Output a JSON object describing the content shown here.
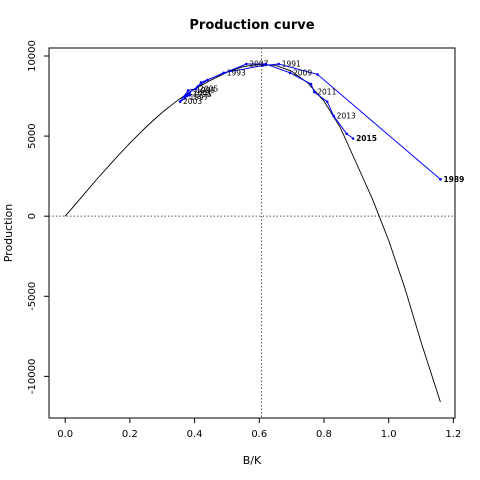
{
  "chart_data": {
    "type": "line",
    "title": "Production curve",
    "xlabel": "B/K",
    "ylabel": "Production",
    "xlim": [
      -0.05,
      1.205
    ],
    "ylim": [
      -12600,
      10500
    ],
    "x_ticks": [
      {
        "value": 0.0,
        "label": "0.0"
      },
      {
        "value": 0.2,
        "label": "0.2"
      },
      {
        "value": 0.4,
        "label": "0.4"
      },
      {
        "value": 0.6,
        "label": "0.6"
      },
      {
        "value": 0.8,
        "label": "0.8"
      },
      {
        "value": 1.0,
        "label": "1.0"
      },
      {
        "value": 1.2,
        "label": "1.2"
      }
    ],
    "y_ticks": [
      {
        "value": -10000,
        "label": "-10000"
      },
      {
        "value": -5000,
        "label": "-5000"
      },
      {
        "value": 0,
        "label": "0"
      },
      {
        "value": 5000,
        "label": "5000"
      },
      {
        "value": 10000,
        "label": "10000"
      }
    ],
    "reference_lines": {
      "vertical_x": 0.607,
      "horizontal_y": 0
    },
    "model_curve": {
      "color": "#000000",
      "points": [
        [
          0.0,
          0
        ],
        [
          0.05,
          1180
        ],
        [
          0.1,
          2350
        ],
        [
          0.15,
          3480
        ],
        [
          0.2,
          4560
        ],
        [
          0.25,
          5570
        ],
        [
          0.3,
          6480
        ],
        [
          0.35,
          7270
        ],
        [
          0.4,
          7940
        ],
        [
          0.45,
          8490
        ],
        [
          0.5,
          8980
        ],
        [
          0.55,
          9330
        ],
        [
          0.6,
          9480
        ],
        [
          0.65,
          9420
        ],
        [
          0.7,
          9050
        ],
        [
          0.75,
          8320
        ],
        [
          0.8,
          7180
        ],
        [
          0.85,
          5540
        ],
        [
          0.9,
          3320
        ],
        [
          0.95,
          1060
        ],
        [
          1.0,
          -1520
        ],
        [
          1.05,
          -4500
        ],
        [
          1.1,
          -7850
        ],
        [
          1.16,
          -11600
        ]
      ]
    },
    "series": [
      {
        "color": "#0000ff",
        "points": [
          {
            "year": "1989",
            "x": 1.16,
            "y": 2300,
            "bold": true
          },
          {
            "year": "",
            "x": 0.78,
            "y": 8850,
            "bold": false
          },
          {
            "year": "1991",
            "x": 0.66,
            "y": 9500,
            "bold": false
          },
          {
            "year": "",
            "x": 0.61,
            "y": 9400,
            "bold": false
          },
          {
            "year": "1993",
            "x": 0.49,
            "y": 8950,
            "bold": false
          },
          {
            "year": "",
            "x": 0.44,
            "y": 8500,
            "bold": false
          },
          {
            "year": "",
            "x": 0.41,
            "y": 8100,
            "bold": false
          },
          {
            "year": "",
            "x": 0.38,
            "y": 7650,
            "bold": false
          },
          {
            "year": "",
            "x": 0.37,
            "y": 7400,
            "bold": false
          },
          {
            "year": "",
            "x": 0.385,
            "y": 7550,
            "bold": false
          },
          {
            "year": "",
            "x": 0.37,
            "y": 7500,
            "bold": false
          },
          {
            "year": "2001",
            "x": 0.385,
            "y": 7700,
            "bold": false
          },
          {
            "year": "",
            "x": 0.37,
            "y": 7350,
            "bold": false
          },
          {
            "year": "2003",
            "x": 0.355,
            "y": 7150,
            "bold": false
          },
          {
            "year": "",
            "x": 0.38,
            "y": 7850,
            "bold": false
          },
          {
            "year": "2005",
            "x": 0.405,
            "y": 7950,
            "bold": false
          },
          {
            "year": "",
            "x": 0.42,
            "y": 8350,
            "bold": false
          },
          {
            "year": "2007",
            "x": 0.56,
            "y": 9500,
            "bold": false
          },
          {
            "year": "",
            "x": 0.62,
            "y": 9500,
            "bold": false
          },
          {
            "year": "2009",
            "x": 0.695,
            "y": 8950,
            "bold": false
          },
          {
            "year": "",
            "x": 0.76,
            "y": 8250,
            "bold": false
          },
          {
            "year": "2011",
            "x": 0.77,
            "y": 7750,
            "bold": false
          },
          {
            "year": "",
            "x": 0.81,
            "y": 7150,
            "bold": false
          },
          {
            "year": "2013",
            "x": 0.83,
            "y": 6250,
            "bold": false
          },
          {
            "year": "",
            "x": 0.87,
            "y": 5150,
            "bold": false
          },
          {
            "year": "2015",
            "x": 0.89,
            "y": 4850,
            "bold": true
          }
        ],
        "extra_labels": [
          {
            "year": "1995",
            "x": 0.385,
            "y": 7600
          },
          {
            "year": "1997",
            "x": 0.375,
            "y": 7420
          },
          {
            "year": "1999",
            "x": 0.395,
            "y": 7850
          }
        ]
      }
    ]
  }
}
